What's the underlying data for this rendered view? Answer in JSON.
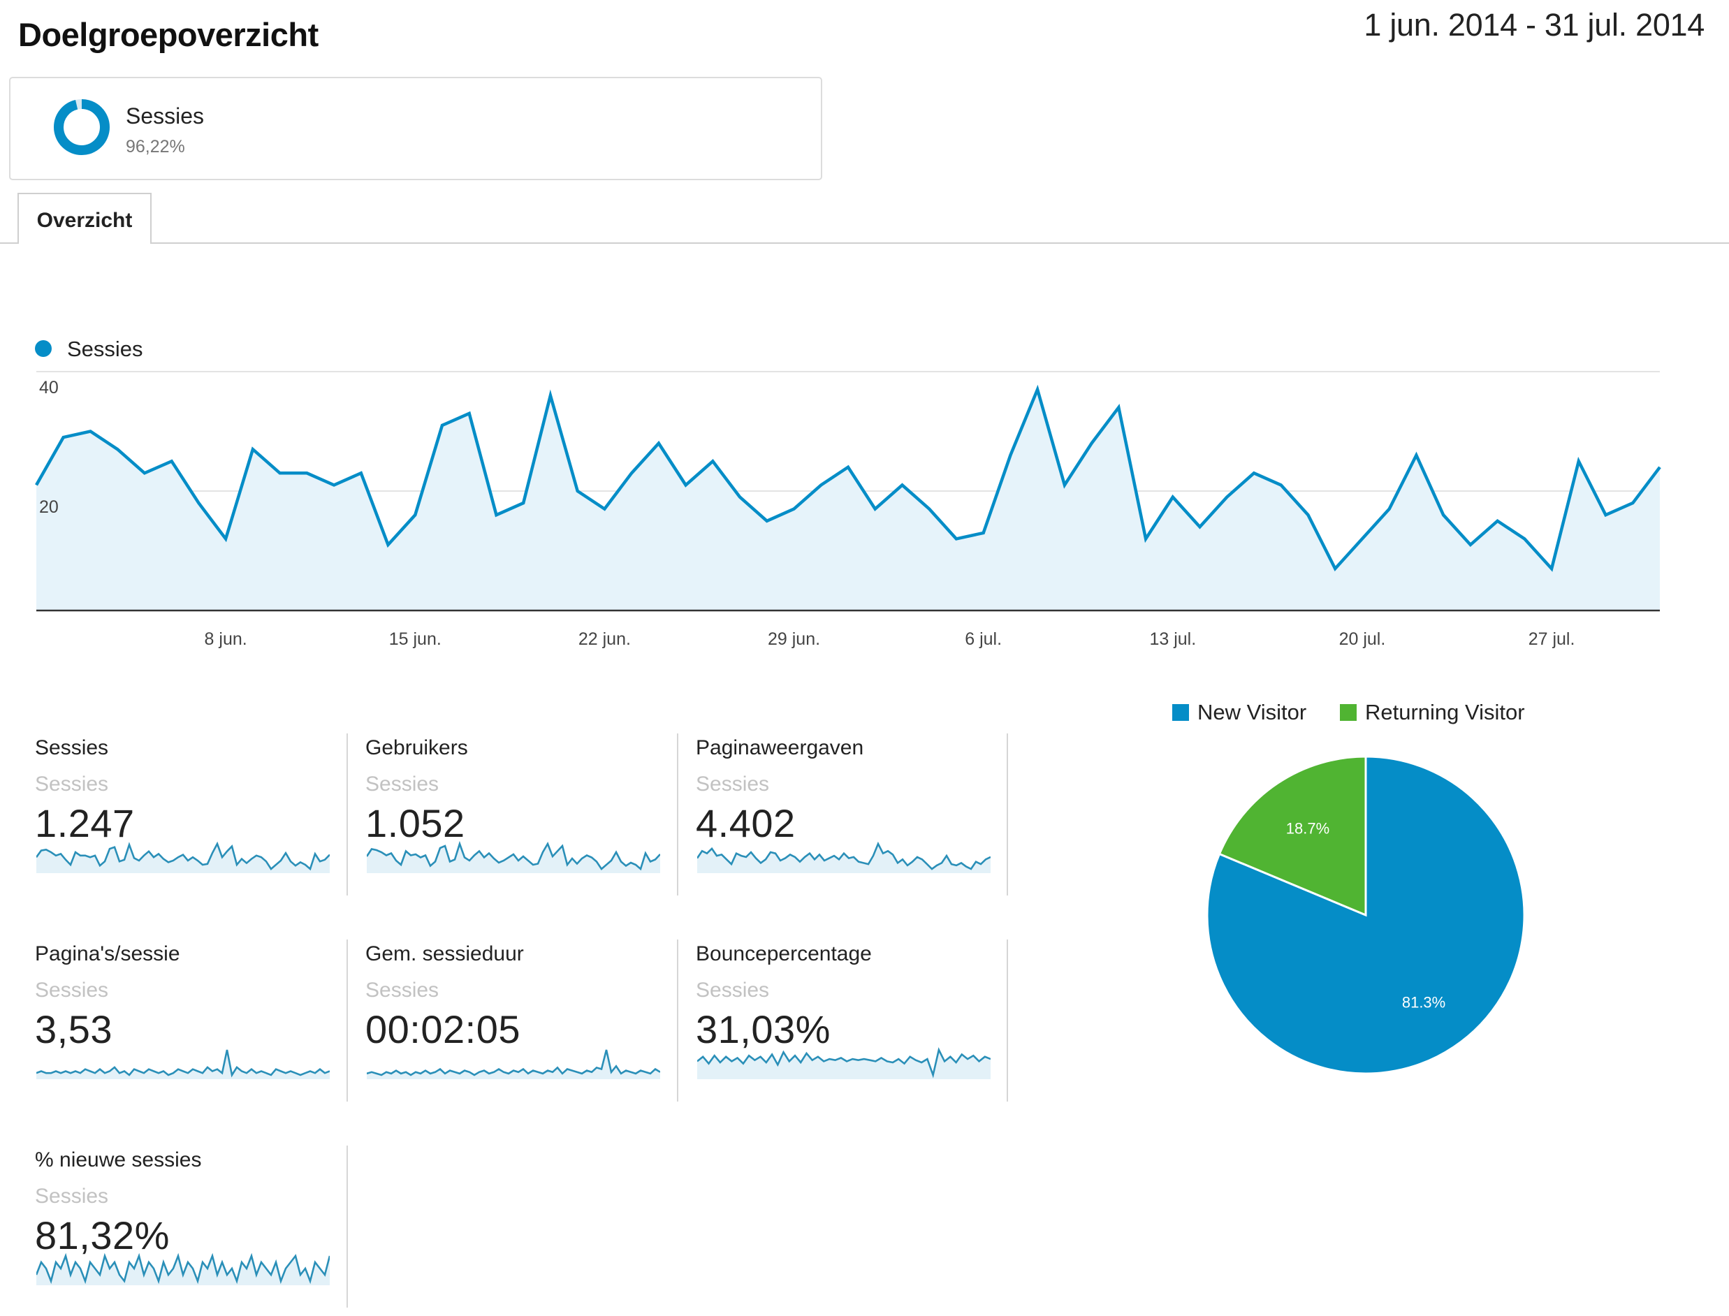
{
  "header": {
    "title": "Doelgroepoverzicht",
    "date_range": "1 jun. 2014 - 31 jul. 2014"
  },
  "segment": {
    "name": "Sessies",
    "percent": "96,22%",
    "fraction": 0.9622,
    "icon": "donut-segment-icon",
    "color": "#058dc7"
  },
  "tabs": [
    {
      "label": "Overzicht",
      "active": true
    }
  ],
  "chart_data": [
    {
      "type": "area",
      "title": "",
      "legend": {
        "entries": [
          "Sessies"
        ],
        "placement": "top-left"
      },
      "color": "#058dc7",
      "fill": "#e6f3fa",
      "ylim": [
        0,
        40
      ],
      "yticks": [
        "20",
        "40"
      ],
      "xticks": [
        {
          "label": "8 jun.",
          "day": 8
        },
        {
          "label": "15 jun.",
          "day": 15
        },
        {
          "label": "22 jun.",
          "day": 22
        },
        {
          "label": "29 jun.",
          "day": 29
        },
        {
          "label": "6 jul.",
          "day": 36
        },
        {
          "label": "13 jul.",
          "day": 43
        },
        {
          "label": "20 jul.",
          "day": 50
        },
        {
          "label": "27 jul.",
          "day": 57
        }
      ],
      "series": [
        {
          "name": "Sessies",
          "values": [
            21,
            29,
            30,
            27,
            23,
            25,
            18,
            12,
            27,
            23,
            23,
            21,
            23,
            11,
            16,
            31,
            33,
            16,
            18,
            36,
            20,
            17,
            23,
            28,
            21,
            25,
            19,
            15,
            17,
            21,
            24,
            17,
            21,
            17,
            12,
            13,
            26,
            37,
            21,
            28,
            34,
            12,
            19,
            14,
            19,
            23,
            21,
            16,
            7,
            12,
            17,
            26,
            16,
            11,
            15,
            12,
            7,
            25,
            16,
            18,
            24
          ]
        }
      ]
    },
    {
      "type": "pie",
      "legend": {
        "placement": "top"
      },
      "slices": [
        {
          "name": "New Visitor",
          "value": 81.3,
          "label": "81.3%",
          "color": "#058dc7"
        },
        {
          "name": "Returning Visitor",
          "value": 18.7,
          "label": "18.7%",
          "color": "#50b432"
        }
      ]
    }
  ],
  "metrics": [
    {
      "title": "Sessies",
      "segment": "Sessies",
      "value": "1.247",
      "spark": [
        21,
        29,
        30,
        27,
        23,
        25,
        18,
        12,
        27,
        23,
        23,
        21,
        23,
        11,
        16,
        31,
        33,
        16,
        18,
        36,
        20,
        17,
        23,
        28,
        21,
        25,
        19,
        15,
        17,
        21,
        24,
        17,
        21,
        17,
        12,
        13,
        26,
        37,
        21,
        28,
        34,
        12,
        19,
        14,
        19,
        23,
        21,
        16,
        7,
        12,
        17,
        26,
        16,
        11,
        15,
        12,
        7,
        25,
        16,
        18,
        24
      ]
    },
    {
      "title": "Gebruikers",
      "segment": "Sessies",
      "value": "1.052",
      "spark": [
        19,
        26,
        25,
        23,
        20,
        22,
        15,
        11,
        24,
        20,
        21,
        18,
        20,
        10,
        14,
        27,
        29,
        14,
        16,
        31,
        18,
        15,
        20,
        24,
        18,
        22,
        17,
        13,
        15,
        18,
        21,
        15,
        19,
        15,
        11,
        12,
        23,
        31,
        19,
        24,
        29,
        11,
        17,
        12,
        17,
        20,
        18,
        14,
        7,
        11,
        15,
        23,
        14,
        10,
        13,
        11,
        7,
        22,
        14,
        16,
        21
      ]
    },
    {
      "title": "Paginaweergaven",
      "segment": "Sessies",
      "value": "4.402",
      "spark": [
        18,
        24,
        22,
        26,
        20,
        21,
        17,
        13,
        22,
        20,
        19,
        23,
        18,
        14,
        17,
        23,
        22,
        16,
        18,
        21,
        19,
        15,
        19,
        22,
        17,
        21,
        16,
        18,
        20,
        17,
        22,
        18,
        19,
        15,
        14,
        13,
        20,
        30,
        22,
        24,
        21,
        14,
        17,
        12,
        15,
        19,
        17,
        13,
        9,
        12,
        14,
        20,
        13,
        12,
        14,
        11,
        9,
        15,
        13,
        17,
        19
      ]
    },
    {
      "title": "Pagina's/sessie",
      "segment": "Sessies",
      "value": "3,53",
      "spark": [
        16,
        17,
        16,
        16,
        17,
        16,
        17,
        16,
        17,
        16,
        18,
        17,
        16,
        18,
        16,
        17,
        19,
        16,
        17,
        15,
        18,
        17,
        16,
        18,
        17,
        16,
        17,
        15,
        16,
        18,
        17,
        16,
        18,
        17,
        16,
        19,
        17,
        18,
        16,
        28,
        15,
        19,
        17,
        16,
        18,
        16,
        17,
        16,
        15,
        18,
        17,
        16,
        17,
        16,
        15,
        16,
        17,
        16,
        18,
        16,
        17
      ]
    },
    {
      "title": "Gem. sessieduur",
      "segment": "Sessies",
      "value": "00:02:05",
      "spark": [
        14,
        15,
        14,
        13,
        15,
        14,
        16,
        14,
        15,
        13,
        15,
        14,
        16,
        14,
        15,
        17,
        14,
        16,
        15,
        14,
        16,
        15,
        13,
        15,
        16,
        14,
        15,
        17,
        15,
        14,
        16,
        15,
        17,
        14,
        16,
        15,
        14,
        16,
        15,
        18,
        14,
        17,
        16,
        15,
        14,
        16,
        15,
        18,
        17,
        30,
        15,
        19,
        14,
        16,
        15,
        14,
        16,
        15,
        14,
        17,
        15
      ]
    },
    {
      "title": "Bouncepercentage",
      "segment": "Sessies",
      "value": "31,03%",
      "spark": [
        18,
        22,
        16,
        23,
        17,
        22,
        18,
        21,
        16,
        23,
        19,
        22,
        17,
        24,
        15,
        26,
        18,
        23,
        17,
        25,
        19,
        22,
        18,
        20,
        19,
        21,
        18,
        20,
        19,
        20,
        19,
        18,
        21,
        18,
        17,
        20,
        16,
        22,
        19,
        17,
        20,
        6,
        28,
        18,
        22,
        17,
        24,
        20,
        23,
        18,
        22,
        20
      ]
    },
    {
      "title": "% nieuwe sessies",
      "segment": "Sessies",
      "value": "81,32%",
      "spark": [
        16,
        18,
        17,
        15,
        18,
        17,
        19,
        16,
        18,
        17,
        15,
        18,
        17,
        16,
        19,
        17,
        18,
        16,
        15,
        18,
        17,
        19,
        16,
        18,
        17,
        15,
        18,
        16,
        17,
        19,
        16,
        18,
        17,
        15,
        18,
        17,
        19,
        16,
        18,
        16,
        17,
        15,
        18,
        17,
        19,
        16,
        18,
        17,
        16,
        18,
        15,
        17,
        18,
        19,
        16,
        17,
        15,
        18,
        17,
        16,
        19
      ]
    }
  ]
}
